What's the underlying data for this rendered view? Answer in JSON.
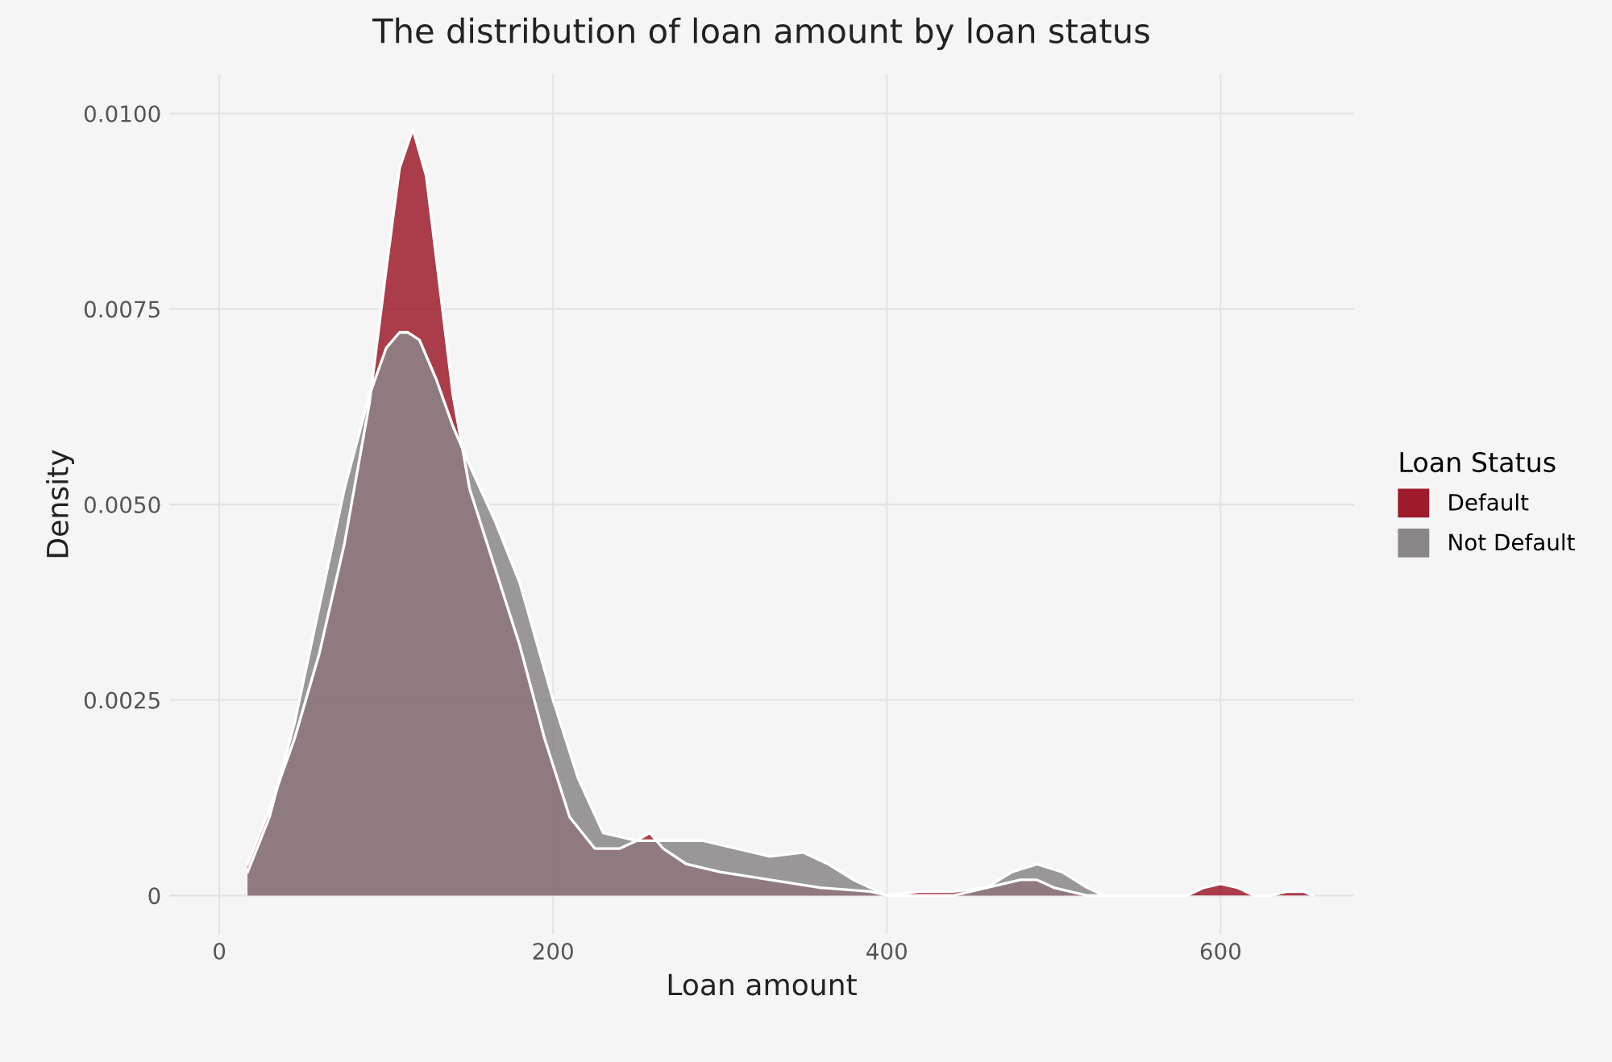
{
  "chart_data": {
    "type": "area",
    "title": "The distribution of loan amount by loan status",
    "xlabel": "Loan amount",
    "ylabel": "Density",
    "legend_title": "Loan Status",
    "legend": "right",
    "grid": true,
    "xlim": [
      -30,
      680
    ],
    "xticks": [
      0,
      200,
      400,
      600
    ],
    "ylim": [
      -0.0005,
      0.0105
    ],
    "yticks": [
      {
        "value": 0,
        "label": "0"
      },
      {
        "value": 0.0025,
        "label": "0.0025"
      },
      {
        "value": 0.005,
        "label": "0.0050"
      },
      {
        "value": 0.0075,
        "label": "0.0075"
      },
      {
        "value": 0.01,
        "label": "0.0100"
      }
    ],
    "series": [
      {
        "name": "Default",
        "color": "#9e1b2c",
        "x": [
          17,
          30,
          45,
          60,
          75,
          90,
          100,
          108,
          116,
          124,
          132,
          140,
          150,
          165,
          180,
          195,
          210,
          225,
          240,
          250,
          258,
          266,
          280,
          300,
          330,
          360,
          390,
          400,
          420,
          440,
          460,
          480,
          490,
          500,
          520,
          540,
          560,
          580,
          590,
          600,
          610,
          620,
          630,
          640,
          650,
          655
        ],
        "values": [
          0.0004,
          0.0011,
          0.002,
          0.0031,
          0.0045,
          0.0063,
          0.008,
          0.0093,
          0.0098,
          0.0092,
          0.0078,
          0.0064,
          0.0052,
          0.0042,
          0.0032,
          0.002,
          0.001,
          0.0006,
          0.0006,
          0.0007,
          0.0008,
          0.0006,
          0.0004,
          0.0003,
          0.0002,
          0.0001,
          5e-05,
          0,
          5e-05,
          5e-05,
          0.0001,
          0.0002,
          0.0002,
          0.0001,
          0,
          0,
          0,
          0,
          0.0001,
          0.00015,
          0.0001,
          0,
          0,
          5e-05,
          5e-05,
          0
        ]
      },
      {
        "name": "Not Default",
        "color": "#8a8688",
        "x": [
          17,
          30,
          45,
          60,
          75,
          90,
          100,
          108,
          113,
          120,
          130,
          140,
          150,
          165,
          180,
          200,
          215,
          230,
          250,
          270,
          290,
          310,
          330,
          350,
          365,
          380,
          400,
          420,
          440,
          460,
          475,
          490,
          505,
          520,
          530
        ],
        "values": [
          0.0003,
          0.001,
          0.0022,
          0.0037,
          0.0052,
          0.0064,
          0.007,
          0.0072,
          0.0072,
          0.0071,
          0.0066,
          0.006,
          0.0055,
          0.0048,
          0.004,
          0.0025,
          0.0015,
          0.0008,
          0.0007,
          0.0007,
          0.0007,
          0.0006,
          0.0005,
          0.00055,
          0.0004,
          0.0002,
          0,
          0,
          0,
          0.0001,
          0.0003,
          0.0004,
          0.0003,
          0.0001,
          0
        ]
      }
    ]
  }
}
